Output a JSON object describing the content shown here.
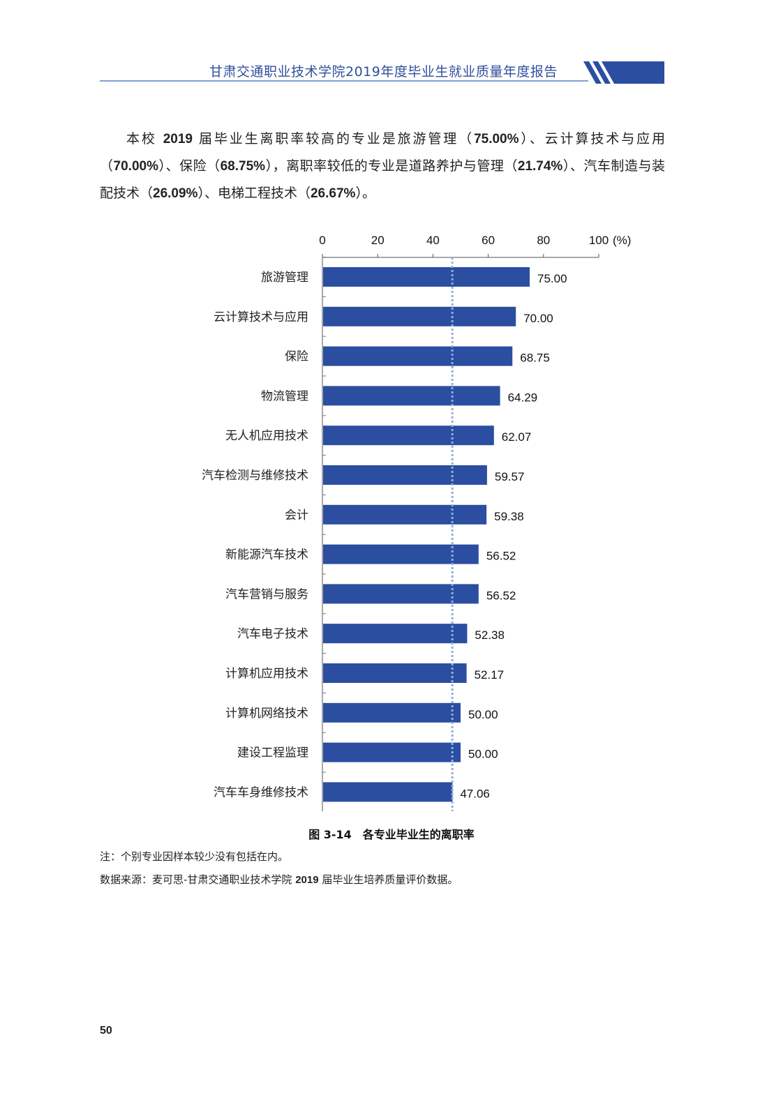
{
  "header": {
    "title": "甘肃交通职业技术学院2019年度毕业生就业质量年度报告"
  },
  "paragraph": {
    "s1": "本校 ",
    "b1": "2019",
    "s2": " 届毕业生离职率较高的专业是旅游管理（",
    "b2": "75.00%",
    "s3": "）、云计算技术与应用（",
    "b3": "70.00%",
    "s4": "）、保险（",
    "b4": "68.75%",
    "s5": "），离职率较低的专业是道路养护与管理（",
    "b5": "21.74%",
    "s6": "）、汽车制造与装配技术（",
    "b6": "26.09%",
    "s7": "）、电梯工程技术（",
    "b7": "26.67%",
    "s8": "）。"
  },
  "chart_data": {
    "type": "bar",
    "orientation": "horizontal",
    "categories": [
      "旅游管理",
      "云计算技术与应用",
      "保险",
      "物流管理",
      "无人机应用技术",
      "汽车检测与维修技术",
      "会计",
      "新能源汽车技术",
      "汽车营销与服务",
      "汽车电子技术",
      "计算机应用技术",
      "计算机网络技术",
      "建设工程监理",
      "汽车车身维修技术"
    ],
    "values": [
      75.0,
      70.0,
      68.75,
      64.29,
      62.07,
      59.57,
      59.38,
      56.52,
      56.52,
      52.38,
      52.17,
      50.0,
      50.0,
      47.06
    ],
    "value_labels": [
      "75.00",
      "70.00",
      "68.75",
      "64.29",
      "62.07",
      "59.57",
      "59.38",
      "56.52",
      "56.52",
      "52.38",
      "52.17",
      "50.00",
      "50.00",
      "47.06"
    ],
    "xlim": [
      0,
      100
    ],
    "x_ticks": [
      "0",
      "20",
      "40",
      "60",
      "80",
      "100"
    ],
    "x_unit": "(%)",
    "x_axis_position": "top",
    "reference_line": 47,
    "grid": false,
    "colors": {
      "bar": "#2b4ea1",
      "reference": "#8fb0dc"
    }
  },
  "caption": "图 3-14　各专业毕业生的离职率",
  "note": "注：个别专业因样本较少没有包括在内。",
  "source": {
    "s1": "数据来源：麦可思-甘肃交通职业技术学院 ",
    "b1": "2019",
    "s2": " 届毕业生培养质量评价数据。"
  },
  "page_number": "50"
}
